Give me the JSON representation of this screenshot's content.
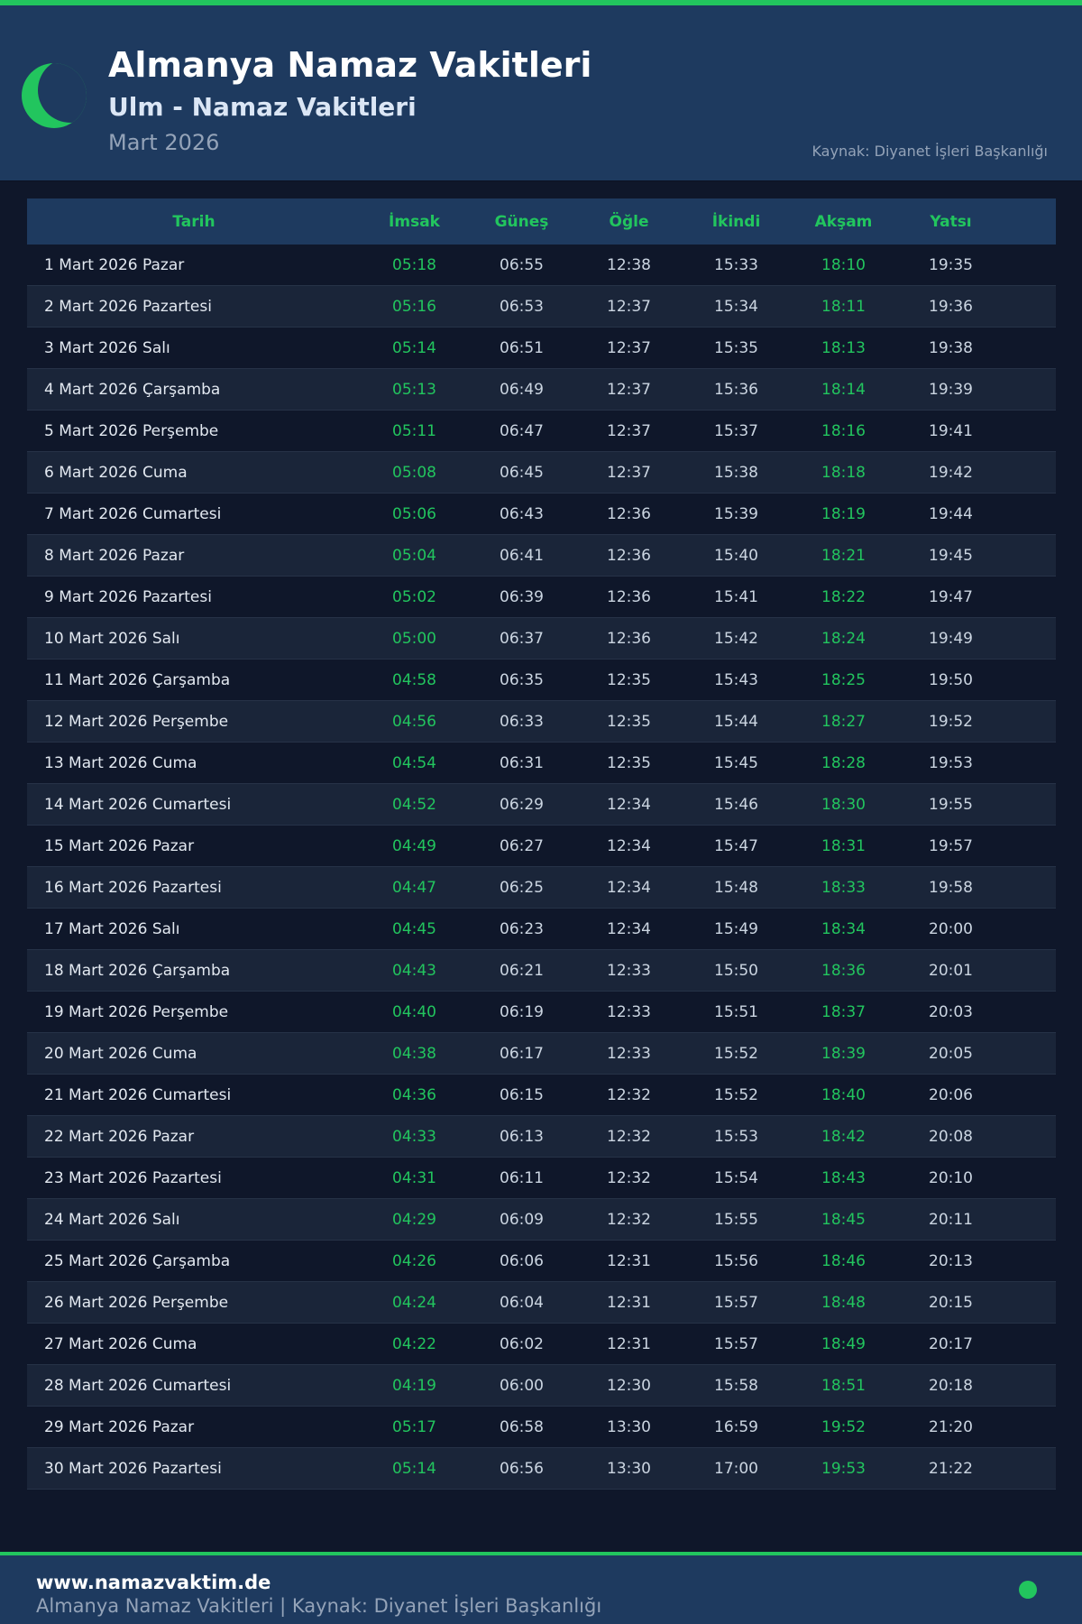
{
  "header": {
    "title": "Almanya Namaz Vakitleri",
    "subtitle": "Ulm - Namaz Vakitleri",
    "month": "Mart 2026",
    "source": "Kaynak: Diyanet İşleri Başkanlığı"
  },
  "colors": {
    "accent": "#22c55e",
    "header_bg": "#1e3a5f",
    "page_bg": "#0f172a"
  },
  "icons": {
    "logo": "crescent-moon-icon",
    "status": "green-dot-icon"
  },
  "table": {
    "columns": [
      "Tarih",
      "İmsak",
      "Güneş",
      "Öğle",
      "İkindi",
      "Akşam",
      "Yatsı"
    ],
    "rows": [
      [
        "1 Mart 2026 Pazar",
        "05:18",
        "06:55",
        "12:38",
        "15:33",
        "18:10",
        "19:35"
      ],
      [
        "2 Mart 2026 Pazartesi",
        "05:16",
        "06:53",
        "12:37",
        "15:34",
        "18:11",
        "19:36"
      ],
      [
        "3 Mart 2026 Salı",
        "05:14",
        "06:51",
        "12:37",
        "15:35",
        "18:13",
        "19:38"
      ],
      [
        "4 Mart 2026 Çarşamba",
        "05:13",
        "06:49",
        "12:37",
        "15:36",
        "18:14",
        "19:39"
      ],
      [
        "5 Mart 2026 Perşembe",
        "05:11",
        "06:47",
        "12:37",
        "15:37",
        "18:16",
        "19:41"
      ],
      [
        "6 Mart 2026 Cuma",
        "05:08",
        "06:45",
        "12:37",
        "15:38",
        "18:18",
        "19:42"
      ],
      [
        "7 Mart 2026 Cumartesi",
        "05:06",
        "06:43",
        "12:36",
        "15:39",
        "18:19",
        "19:44"
      ],
      [
        "8 Mart 2026 Pazar",
        "05:04",
        "06:41",
        "12:36",
        "15:40",
        "18:21",
        "19:45"
      ],
      [
        "9 Mart 2026 Pazartesi",
        "05:02",
        "06:39",
        "12:36",
        "15:41",
        "18:22",
        "19:47"
      ],
      [
        "10 Mart 2026 Salı",
        "05:00",
        "06:37",
        "12:36",
        "15:42",
        "18:24",
        "19:49"
      ],
      [
        "11 Mart 2026 Çarşamba",
        "04:58",
        "06:35",
        "12:35",
        "15:43",
        "18:25",
        "19:50"
      ],
      [
        "12 Mart 2026 Perşembe",
        "04:56",
        "06:33",
        "12:35",
        "15:44",
        "18:27",
        "19:52"
      ],
      [
        "13 Mart 2026 Cuma",
        "04:54",
        "06:31",
        "12:35",
        "15:45",
        "18:28",
        "19:53"
      ],
      [
        "14 Mart 2026 Cumartesi",
        "04:52",
        "06:29",
        "12:34",
        "15:46",
        "18:30",
        "19:55"
      ],
      [
        "15 Mart 2026 Pazar",
        "04:49",
        "06:27",
        "12:34",
        "15:47",
        "18:31",
        "19:57"
      ],
      [
        "16 Mart 2026 Pazartesi",
        "04:47",
        "06:25",
        "12:34",
        "15:48",
        "18:33",
        "19:58"
      ],
      [
        "17 Mart 2026 Salı",
        "04:45",
        "06:23",
        "12:34",
        "15:49",
        "18:34",
        "20:00"
      ],
      [
        "18 Mart 2026 Çarşamba",
        "04:43",
        "06:21",
        "12:33",
        "15:50",
        "18:36",
        "20:01"
      ],
      [
        "19 Mart 2026 Perşembe",
        "04:40",
        "06:19",
        "12:33",
        "15:51",
        "18:37",
        "20:03"
      ],
      [
        "20 Mart 2026 Cuma",
        "04:38",
        "06:17",
        "12:33",
        "15:52",
        "18:39",
        "20:05"
      ],
      [
        "21 Mart 2026 Cumartesi",
        "04:36",
        "06:15",
        "12:32",
        "15:52",
        "18:40",
        "20:06"
      ],
      [
        "22 Mart 2026 Pazar",
        "04:33",
        "06:13",
        "12:32",
        "15:53",
        "18:42",
        "20:08"
      ],
      [
        "23 Mart 2026 Pazartesi",
        "04:31",
        "06:11",
        "12:32",
        "15:54",
        "18:43",
        "20:10"
      ],
      [
        "24 Mart 2026 Salı",
        "04:29",
        "06:09",
        "12:32",
        "15:55",
        "18:45",
        "20:11"
      ],
      [
        "25 Mart 2026 Çarşamba",
        "04:26",
        "06:06",
        "12:31",
        "15:56",
        "18:46",
        "20:13"
      ],
      [
        "26 Mart 2026 Perşembe",
        "04:24",
        "06:04",
        "12:31",
        "15:57",
        "18:48",
        "20:15"
      ],
      [
        "27 Mart 2026 Cuma",
        "04:22",
        "06:02",
        "12:31",
        "15:57",
        "18:49",
        "20:17"
      ],
      [
        "28 Mart 2026 Cumartesi",
        "04:19",
        "06:00",
        "12:30",
        "15:58",
        "18:51",
        "20:18"
      ],
      [
        "29 Mart 2026 Pazar",
        "05:17",
        "06:58",
        "13:30",
        "16:59",
        "19:52",
        "21:20"
      ],
      [
        "30 Mart 2026 Pazartesi",
        "05:14",
        "06:56",
        "13:30",
        "17:00",
        "19:53",
        "21:22"
      ]
    ]
  },
  "footer": {
    "site": "www.namazvaktim.de",
    "text": "Almanya Namaz Vakitleri | Kaynak: Diyanet İşleri Başkanlığı"
  }
}
